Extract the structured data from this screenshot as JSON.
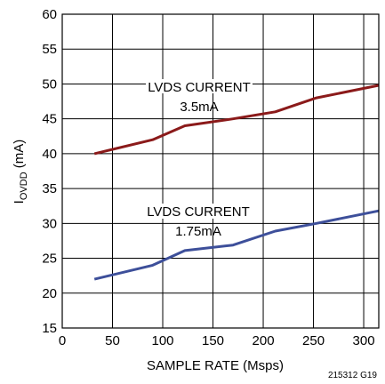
{
  "chart_data": {
    "type": "line",
    "title": "",
    "xlabel": "SAMPLE RATE (Msps)",
    "ylabel_main": "I",
    "ylabel_sub": "OVDD",
    "ylabel_unit": " (mA)",
    "xlim": [
      0,
      315
    ],
    "ylim": [
      15,
      60
    ],
    "xticks": [
      0,
      50,
      100,
      150,
      200,
      250,
      300
    ],
    "yticks": [
      15,
      20,
      25,
      30,
      35,
      40,
      45,
      50,
      55,
      60
    ],
    "grid": true,
    "series": [
      {
        "name": "LVDS CURRENT 3.5mA",
        "color": "#8b1a1a",
        "x": [
          32,
          90,
          122,
          170,
          212,
          253,
          315
        ],
        "y": [
          40,
          42,
          44,
          45,
          46,
          48,
          49.8
        ]
      },
      {
        "name": "LVDS CURRENT 1.75mA",
        "color": "#3d4f9a",
        "x": [
          32,
          90,
          122,
          170,
          212,
          253,
          315
        ],
        "y": [
          22,
          24,
          26.1,
          26.9,
          28.9,
          30,
          31.8
        ]
      }
    ],
    "annotations": [
      {
        "line1": "LVDS CURRENT",
        "line2": "3.5mA"
      },
      {
        "line1": "LVDS CURRENT",
        "line2": "1.75mA"
      }
    ],
    "figure_id": "215312 G19"
  }
}
